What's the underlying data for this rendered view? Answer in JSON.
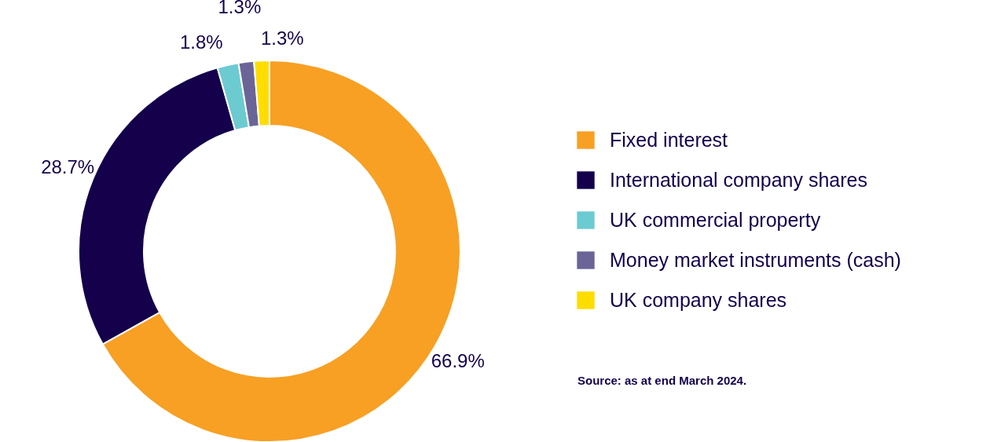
{
  "chart_data": {
    "type": "donut",
    "categories": [
      "Fixed interest",
      "International company shares",
      "UK commercial property",
      "Money market instruments (cash)",
      "UK company shares"
    ],
    "values": [
      66.9,
      28.7,
      1.8,
      1.3,
      1.3
    ],
    "colors": [
      "#f7a024",
      "#14004b",
      "#6ccbd1",
      "#6b6597",
      "#ffdd00"
    ],
    "value_labels": [
      "66.9%",
      "28.7%",
      "1.8%",
      "1.3%",
      "1.3%"
    ],
    "legend": "right",
    "annotations": [
      "Source: as at end March 2024."
    ]
  }
}
